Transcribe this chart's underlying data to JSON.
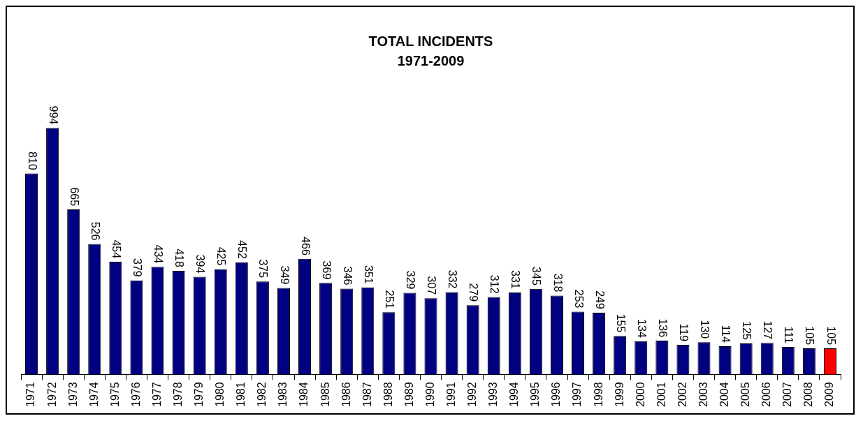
{
  "chart_data": {
    "type": "bar",
    "title": "TOTAL INCIDENTS",
    "subtitle": "1971-2009",
    "categories": [
      "1971",
      "1972",
      "1973",
      "1974",
      "1975",
      "1976",
      "1977",
      "1978",
      "1979",
      "1980",
      "1981",
      "1982",
      "1983",
      "1984",
      "1985",
      "1986",
      "1987",
      "1988",
      "1989",
      "1990",
      "1991",
      "1992",
      "1993",
      "1994",
      "1995",
      "1996",
      "1997",
      "1998",
      "1999",
      "2000",
      "2001",
      "2002",
      "2003",
      "2004",
      "2005",
      "2006",
      "2007",
      "2008",
      "2009"
    ],
    "values": [
      810,
      994,
      665,
      526,
      454,
      379,
      434,
      418,
      394,
      425,
      452,
      375,
      349,
      466,
      369,
      346,
      351,
      251,
      329,
      307,
      332,
      279,
      312,
      331,
      345,
      318,
      253,
      249,
      155,
      134,
      136,
      119,
      130,
      114,
      125,
      127,
      111,
      105,
      105
    ],
    "colors": [
      "#000080",
      "#000080",
      "#000080",
      "#000080",
      "#000080",
      "#000080",
      "#000080",
      "#000080",
      "#000080",
      "#000080",
      "#000080",
      "#000080",
      "#000080",
      "#000080",
      "#000080",
      "#000080",
      "#000080",
      "#000080",
      "#000080",
      "#000080",
      "#000080",
      "#000080",
      "#000080",
      "#000080",
      "#000080",
      "#000080",
      "#000080",
      "#000080",
      "#000080",
      "#000080",
      "#000080",
      "#000080",
      "#000080",
      "#000080",
      "#000080",
      "#000080",
      "#000080",
      "#000080",
      "#ff0000"
    ],
    "data_labels": true,
    "grid": false,
    "legend": false,
    "tick_labels": "x"
  }
}
